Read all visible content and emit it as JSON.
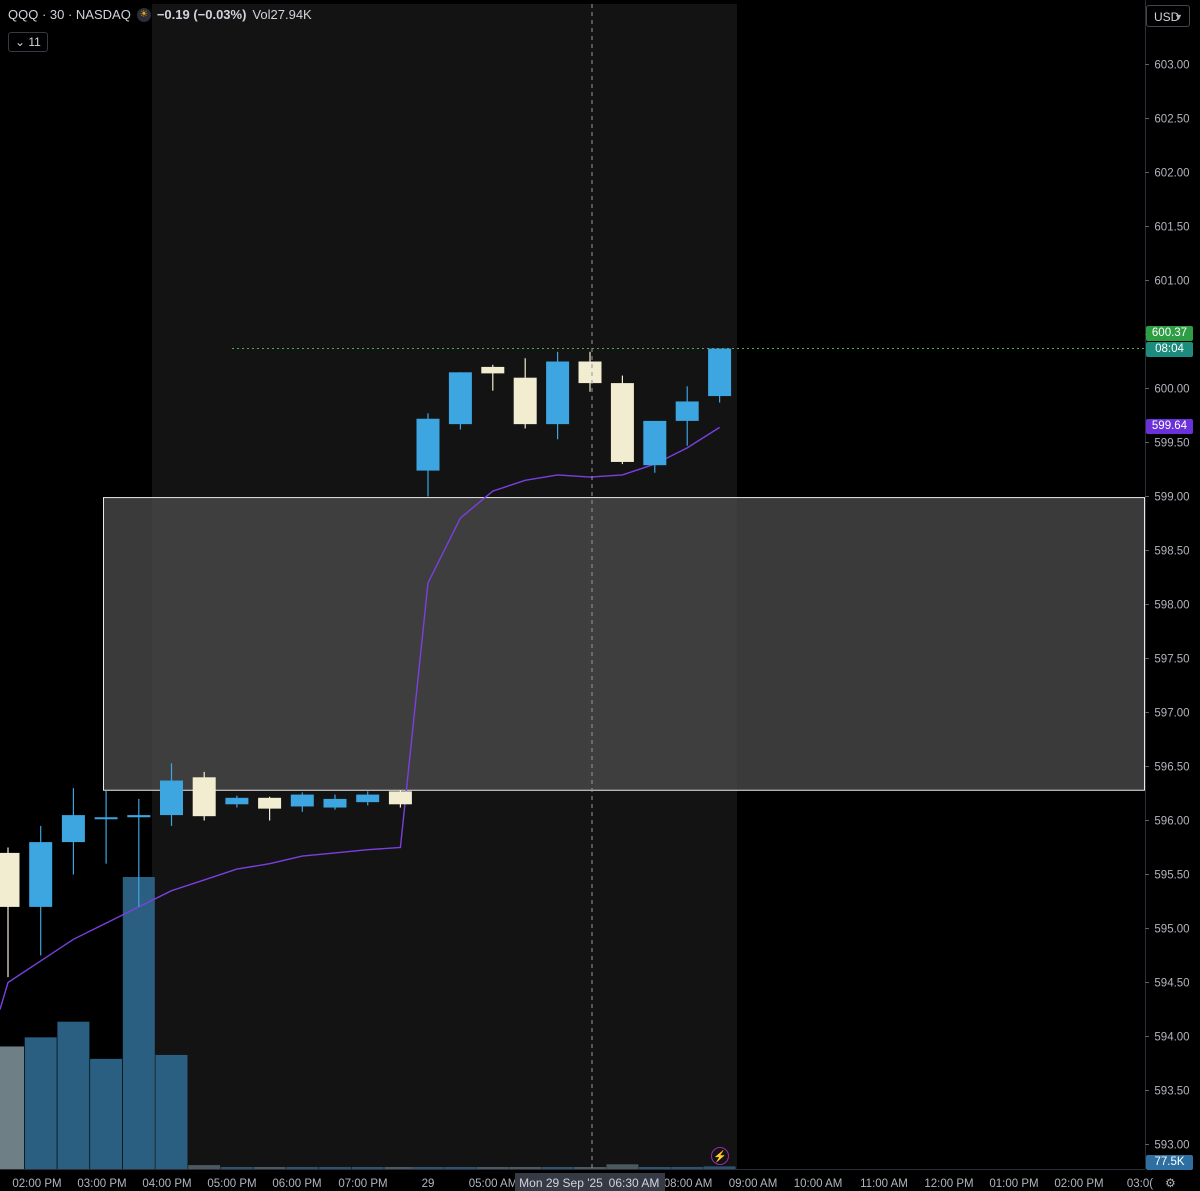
{
  "header": {
    "symbol": "QQQ · 30 · NASDAQ",
    "session_icon": "sun-icon",
    "change": "−0.19 (−0.03%)",
    "volume_label": "Vol",
    "volume_value": "27.94K",
    "indicators_toggle": "11",
    "currency": "USD"
  },
  "colors": {
    "up": "#3da5e0",
    "down": "#f2ecd0",
    "vwap": "#7b3fe0",
    "price_line": "#4caf50",
    "box_fill": "#4a4a4a",
    "session_bg": "#131313"
  },
  "tags": {
    "last_price": "600.37",
    "countdown": "08:04",
    "vwap_value": "599.64",
    "volume_value": "77.5K"
  },
  "crosshair": {
    "date_label": "Mon 29 Sep '25",
    "time_label": "06:30 AM"
  },
  "chart_data": {
    "type": "candlestick",
    "title": "QQQ · 30 · NASDAQ",
    "ylim": [
      592.9,
      603.5
    ],
    "y_ticks": [
      "603.00",
      "602.50",
      "602.00",
      "601.50",
      "601.00",
      "600.50",
      "600.00",
      "599.50",
      "599.00",
      "598.50",
      "598.00",
      "597.50",
      "597.00",
      "596.50",
      "596.00",
      "595.50",
      "595.00",
      "594.50",
      "594.00",
      "593.50",
      "593.00"
    ],
    "x_tick_labels": [
      "02:00 PM",
      "03:00 PM",
      "04:00 PM",
      "05:00 PM",
      "06:00 PM",
      "07:00 PM",
      "29",
      "05:00 AM",
      "08:00 AM",
      "09:00 AM",
      "10:00 AM",
      "11:00 AM",
      "12:00 PM",
      "01:00 PM",
      "02:00 PM",
      "03:0("
    ],
    "candles": [
      {
        "t": "01:30 PM",
        "o": 595.7,
        "h": 595.75,
        "l": 594.55,
        "c": 595.2,
        "v": 940
      },
      {
        "t": "02:00 PM",
        "o": 595.2,
        "h": 595.95,
        "l": 594.75,
        "c": 595.8,
        "v": 1010
      },
      {
        "t": "02:30 PM",
        "o": 595.8,
        "h": 596.3,
        "l": 595.5,
        "c": 596.05,
        "v": 1130
      },
      {
        "t": "03:00 PM",
        "o": 596.02,
        "h": 596.28,
        "l": 595.6,
        "c": 596.03,
        "v": 845
      },
      {
        "t": "03:30 PM",
        "o": 596.03,
        "h": 596.2,
        "l": 595.2,
        "c": 596.05,
        "v": 2240
      },
      {
        "t": "04:00 PM",
        "o": 596.05,
        "h": 596.53,
        "l": 595.95,
        "c": 596.37,
        "v": 875
      },
      {
        "t": "04:30 PM",
        "o": 596.4,
        "h": 596.45,
        "l": 596.0,
        "c": 596.04,
        "v": 30
      },
      {
        "t": "05:00 PM",
        "o": 596.15,
        "h": 596.23,
        "l": 596.12,
        "c": 596.21,
        "v": 8
      },
      {
        "t": "05:30 PM",
        "o": 596.21,
        "h": 596.22,
        "l": 596.0,
        "c": 596.11,
        "v": 5
      },
      {
        "t": "06:00 PM",
        "o": 596.13,
        "h": 596.26,
        "l": 596.08,
        "c": 596.24,
        "v": 6
      },
      {
        "t": "06:30 PM",
        "o": 596.12,
        "h": 596.24,
        "l": 596.1,
        "c": 596.2,
        "v": 5
      },
      {
        "t": "07:00 PM",
        "o": 596.17,
        "h": 596.27,
        "l": 596.14,
        "c": 596.24,
        "v": 4
      },
      {
        "t": "07:30 PM",
        "o": 596.27,
        "h": 596.28,
        "l": 596.12,
        "c": 596.15,
        "v": 6
      },
      {
        "t": "04:00 AM",
        "o": 599.24,
        "h": 599.77,
        "l": 599.0,
        "c": 599.72,
        "v": 14
      },
      {
        "t": "04:30 AM",
        "o": 599.67,
        "h": 600.15,
        "l": 599.62,
        "c": 600.15,
        "v": 11
      },
      {
        "t": "05:00 AM",
        "o": 600.2,
        "h": 600.22,
        "l": 599.98,
        "c": 600.14,
        "v": 9
      },
      {
        "t": "05:30 AM",
        "o": 600.1,
        "h": 600.28,
        "l": 599.63,
        "c": 599.67,
        "v": 12
      },
      {
        "t": "06:00 AM",
        "o": 599.67,
        "h": 600.34,
        "l": 599.53,
        "c": 600.25,
        "v": 10
      },
      {
        "t": "06:30 AM",
        "o": 600.25,
        "h": 600.34,
        "l": 599.97,
        "c": 600.05,
        "v": 8
      },
      {
        "t": "07:00 AM",
        "o": 600.05,
        "h": 600.12,
        "l": 599.3,
        "c": 599.32,
        "v": 36
      },
      {
        "t": "07:30 AM",
        "o": 599.29,
        "h": 599.7,
        "l": 599.22,
        "c": 599.7,
        "v": 9
      },
      {
        "t": "08:00 AM",
        "o": 599.7,
        "h": 600.02,
        "l": 599.47,
        "c": 599.88,
        "v": 12
      },
      {
        "t": "08:30 AM",
        "o": 599.93,
        "h": 600.37,
        "l": 599.87,
        "c": 600.37,
        "v": 20
      }
    ],
    "vwap": [
      594.5,
      594.7,
      594.9,
      595.05,
      595.2,
      595.35,
      595.45,
      595.55,
      595.6,
      595.67,
      595.7,
      595.73,
      595.75,
      598.2,
      598.8,
      599.05,
      599.15,
      599.2,
      599.18,
      599.2,
      599.3,
      599.45,
      599.64
    ],
    "volume_ylim": [
      0,
      2600
    ],
    "highlight_box": {
      "low": 596.28,
      "high": 598.99
    },
    "last_price": 600.37,
    "price_line": 600.37
  }
}
